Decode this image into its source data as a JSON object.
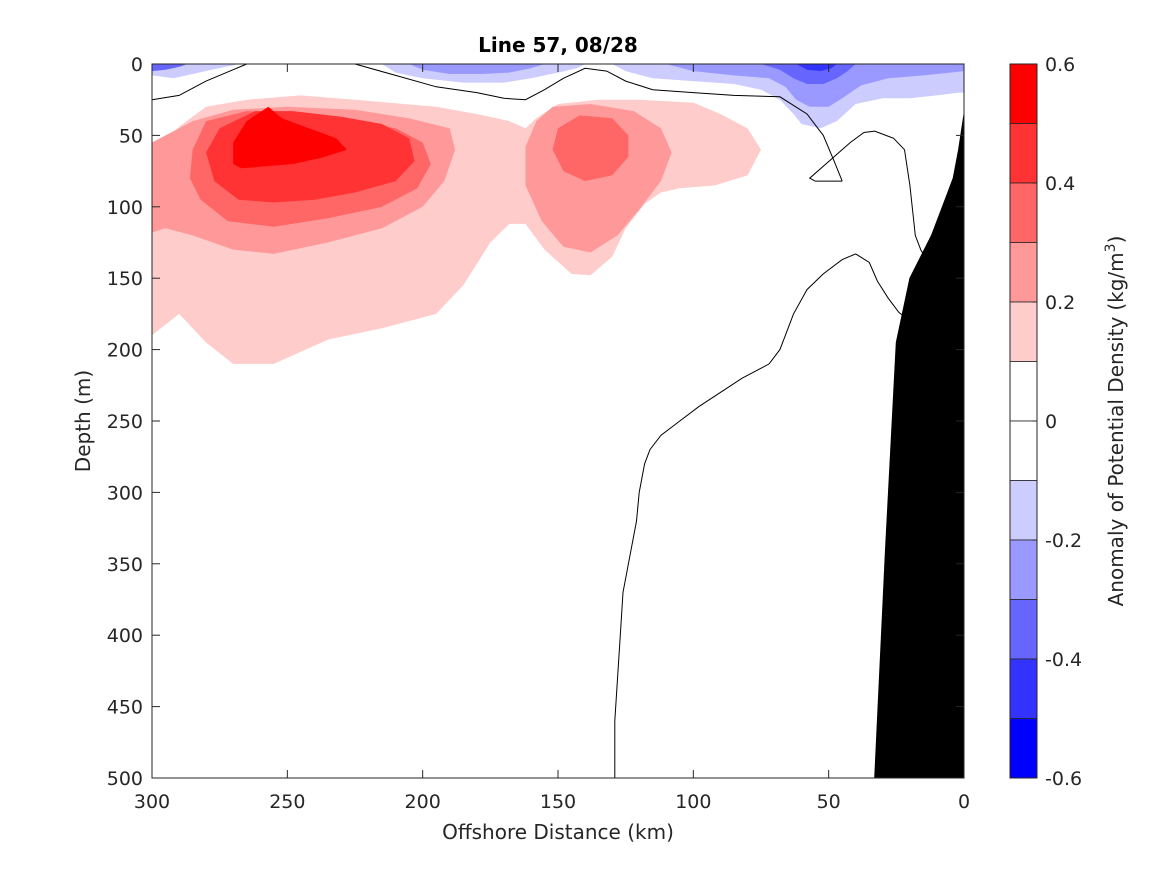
{
  "chart_data": {
    "type": "contour",
    "title": "Line 57, 08/28",
    "xlabel": "Offshore Distance (km)",
    "ylabel": "Depth (m)",
    "xlim": [
      300,
      0
    ],
    "ylim": [
      0,
      500
    ],
    "x_reversed": true,
    "y_reversed": true,
    "x_ticks": [
      "300",
      "250",
      "200",
      "150",
      "100",
      "50",
      "0"
    ],
    "y_ticks": [
      "0",
      "50",
      "100",
      "150",
      "200",
      "250",
      "300",
      "350",
      "400",
      "450",
      "500"
    ],
    "colorbar": {
      "label": "Anomaly of Potential Density",
      "unit_prefix": "(kg/m",
      "unit_exponent": "3",
      "unit_suffix": ")",
      "range": [
        -0.6,
        0.6
      ],
      "tick_labels": [
        "0.6",
        "0.4",
        "0.2",
        "0",
        "-0.2",
        "-0.4",
        "-0.6"
      ],
      "levels": [
        {
          "min": 0.5,
          "max": 0.6,
          "color": "#ff0000"
        },
        {
          "min": 0.4,
          "max": 0.5,
          "color": "#ff3333"
        },
        {
          "min": 0.3,
          "max": 0.4,
          "color": "#ff6666"
        },
        {
          "min": 0.2,
          "max": 0.3,
          "color": "#ff9999"
        },
        {
          "min": 0.1,
          "max": 0.2,
          "color": "#ffcccc"
        },
        {
          "min": 0.0,
          "max": 0.1,
          "color": "#ffffff"
        },
        {
          "min": -0.1,
          "max": 0.0,
          "color": "#ffffff"
        },
        {
          "min": -0.2,
          "max": -0.1,
          "color": "#ccccff"
        },
        {
          "min": -0.3,
          "max": -0.2,
          "color": "#9999ff"
        },
        {
          "min": -0.4,
          "max": -0.3,
          "color": "#6666ff"
        },
        {
          "min": -0.5,
          "max": -0.4,
          "color": "#3333ff"
        },
        {
          "min": -0.6,
          "max": -0.5,
          "color": "#0000ff"
        }
      ]
    },
    "regions": [
      {
        "name": "ring-0.1",
        "color": "#ffcccc",
        "points": [
          [
            300,
            62
          ],
          [
            295,
            55
          ],
          [
            290,
            44
          ],
          [
            280,
            30
          ],
          [
            265,
            25
          ],
          [
            245,
            22
          ],
          [
            225,
            25
          ],
          [
            195,
            30
          ],
          [
            180,
            35
          ],
          [
            168,
            40
          ],
          [
            162,
            45
          ],
          [
            158,
            38
          ],
          [
            150,
            28
          ],
          [
            135,
            25
          ],
          [
            120,
            25
          ],
          [
            100,
            27
          ],
          [
            90,
            35
          ],
          [
            80,
            45
          ],
          [
            75,
            60
          ],
          [
            80,
            78
          ],
          [
            92,
            85
          ],
          [
            105,
            87
          ],
          [
            112,
            90
          ],
          [
            118,
            98
          ],
          [
            125,
            115
          ],
          [
            130,
            135
          ],
          [
            138,
            148
          ],
          [
            145,
            147
          ],
          [
            155,
            130
          ],
          [
            162,
            112
          ],
          [
            168,
            112
          ],
          [
            175,
            125
          ],
          [
            180,
            140
          ],
          [
            185,
            155
          ],
          [
            195,
            175
          ],
          [
            215,
            185
          ],
          [
            235,
            193
          ],
          [
            255,
            210
          ],
          [
            270,
            210
          ],
          [
            280,
            195
          ],
          [
            290,
            175
          ],
          [
            300,
            190
          ]
        ]
      },
      {
        "name": "ring-0.2",
        "color": "#ff9999",
        "points": [
          [
            300,
            118
          ],
          [
            300,
            55
          ],
          [
            285,
            40
          ],
          [
            270,
            32
          ],
          [
            250,
            30
          ],
          [
            225,
            32
          ],
          [
            205,
            38
          ],
          [
            190,
            45
          ],
          [
            188,
            60
          ],
          [
            192,
            82
          ],
          [
            200,
            100
          ],
          [
            215,
            115
          ],
          [
            235,
            125
          ],
          [
            255,
            133
          ],
          [
            270,
            130
          ],
          [
            285,
            120
          ],
          [
            295,
            115
          ]
        ]
      },
      {
        "name": "ring-0.2-east",
        "color": "#ff9999",
        "points": [
          [
            152,
            30
          ],
          [
            138,
            28
          ],
          [
            122,
            33
          ],
          [
            112,
            45
          ],
          [
            108,
            62
          ],
          [
            112,
            82
          ],
          [
            120,
            102
          ],
          [
            128,
            120
          ],
          [
            138,
            132
          ],
          [
            148,
            128
          ],
          [
            156,
            110
          ],
          [
            162,
            85
          ],
          [
            162,
            58
          ],
          [
            158,
            40
          ]
        ]
      },
      {
        "name": "ring-0.3",
        "color": "#ff6666",
        "points": [
          [
            285,
            60
          ],
          [
            280,
            40
          ],
          [
            265,
            33
          ],
          [
            245,
            35
          ],
          [
            225,
            40
          ],
          [
            210,
            45
          ],
          [
            200,
            55
          ],
          [
            197,
            70
          ],
          [
            202,
            87
          ],
          [
            215,
            100
          ],
          [
            235,
            108
          ],
          [
            255,
            114
          ],
          [
            272,
            110
          ],
          [
            282,
            95
          ],
          [
            286,
            80
          ]
        ]
      },
      {
        "name": "ring-0.3-east",
        "color": "#ff6666",
        "points": [
          [
            150,
            45
          ],
          [
            142,
            36
          ],
          [
            130,
            38
          ],
          [
            124,
            50
          ],
          [
            124,
            65
          ],
          [
            130,
            78
          ],
          [
            140,
            82
          ],
          [
            148,
            75
          ],
          [
            152,
            60
          ]
        ]
      },
      {
        "name": "ring-0.4",
        "color": "#ff3333",
        "points": [
          [
            280,
            62
          ],
          [
            275,
            45
          ],
          [
            262,
            33
          ],
          [
            248,
            33
          ],
          [
            230,
            37
          ],
          [
            215,
            42
          ],
          [
            205,
            52
          ],
          [
            203,
            68
          ],
          [
            210,
            82
          ],
          [
            225,
            90
          ],
          [
            240,
            95
          ],
          [
            255,
            97
          ],
          [
            268,
            95
          ],
          [
            277,
            82
          ]
        ]
      },
      {
        "name": "ring-0.5",
        "color": "#ff0000",
        "points": [
          [
            270,
            70
          ],
          [
            270,
            55
          ],
          [
            265,
            40
          ],
          [
            257,
            30
          ],
          [
            252,
            38
          ],
          [
            242,
            45
          ],
          [
            232,
            52
          ],
          [
            228,
            60
          ],
          [
            238,
            66
          ],
          [
            248,
            70
          ],
          [
            260,
            72
          ],
          [
            267,
            73
          ]
        ]
      },
      {
        "name": "neg-surface-west",
        "color": "#ccccff",
        "points": [
          [
            300,
            0
          ],
          [
            300,
            8
          ],
          [
            292,
            10
          ],
          [
            285,
            7
          ],
          [
            278,
            4
          ],
          [
            270,
            1
          ],
          [
            268,
            0
          ]
        ]
      },
      {
        "name": "neg-surface-west-2",
        "color": "#6666ff",
        "points": [
          [
            300,
            0
          ],
          [
            300,
            5
          ],
          [
            295,
            4
          ],
          [
            290,
            2
          ],
          [
            287,
            0
          ]
        ]
      },
      {
        "name": "neg-surface-mid",
        "color": "#ccccff",
        "points": [
          [
            215,
            0
          ],
          [
            210,
            6
          ],
          [
            200,
            10
          ],
          [
            185,
            13
          ],
          [
            170,
            13
          ],
          [
            160,
            10
          ],
          [
            150,
            6
          ],
          [
            143,
            3
          ],
          [
            140,
            0
          ]
        ]
      },
      {
        "name": "neg-surface-mid-2",
        "color": "#9999ff",
        "points": [
          [
            205,
            0
          ],
          [
            200,
            4
          ],
          [
            190,
            7
          ],
          [
            178,
            7
          ],
          [
            168,
            6
          ],
          [
            160,
            3
          ],
          [
            155,
            0
          ]
        ]
      },
      {
        "name": "neg-surface-east",
        "color": "#ccccff",
        "points": [
          [
            130,
            0
          ],
          [
            125,
            5
          ],
          [
            115,
            10
          ],
          [
            100,
            12
          ],
          [
            85,
            14
          ],
          [
            75,
            18
          ],
          [
            68,
            25
          ],
          [
            63,
            35
          ],
          [
            60,
            42
          ],
          [
            53,
            45
          ],
          [
            47,
            40
          ],
          [
            40,
            28
          ],
          [
            30,
            24
          ],
          [
            20,
            24
          ],
          [
            10,
            22
          ],
          [
            2,
            20
          ],
          [
            0,
            20
          ],
          [
            0,
            0
          ]
        ]
      },
      {
        "name": "neg-surface-east-2",
        "color": "#9999ff",
        "points": [
          [
            110,
            0
          ],
          [
            100,
            5
          ],
          [
            85,
            8
          ],
          [
            72,
            10
          ],
          [
            66,
            16
          ],
          [
            62,
            25
          ],
          [
            57,
            30
          ],
          [
            50,
            30
          ],
          [
            45,
            24
          ],
          [
            38,
            15
          ],
          [
            28,
            10
          ],
          [
            15,
            8
          ],
          [
            5,
            6
          ],
          [
            0,
            5
          ],
          [
            0,
            0
          ]
        ]
      },
      {
        "name": "neg-surface-east-3",
        "color": "#6666ff",
        "points": [
          [
            75,
            0
          ],
          [
            68,
            4
          ],
          [
            63,
            10
          ],
          [
            58,
            14
          ],
          [
            52,
            14
          ],
          [
            47,
            10
          ],
          [
            43,
            5
          ],
          [
            40,
            0
          ]
        ]
      },
      {
        "name": "neg-surface-east-4",
        "color": "#3333ff",
        "points": [
          [
            62,
            0
          ],
          [
            58,
            4
          ],
          [
            53,
            5
          ],
          [
            49,
            3
          ],
          [
            47,
            0
          ]
        ]
      }
    ],
    "zero_contours": [
      [
        [
          300,
          25
        ],
        [
          290,
          22
        ],
        [
          280,
          12
        ],
        [
          270,
          4
        ],
        [
          265,
          0
        ]
      ],
      [
        [
          225,
          0
        ],
        [
          210,
          8
        ],
        [
          195,
          16
        ],
        [
          180,
          20
        ],
        [
          170,
          24
        ],
        [
          162,
          25
        ],
        [
          155,
          18
        ],
        [
          148,
          10
        ],
        [
          140,
          3
        ],
        [
          132,
          5
        ],
        [
          125,
          12
        ],
        [
          115,
          18
        ],
        [
          100,
          20
        ],
        [
          85,
          22
        ],
        [
          68,
          23
        ],
        [
          58,
          35
        ],
        [
          52,
          50
        ],
        [
          48,
          68
        ],
        [
          45,
          82
        ]
      ],
      [
        [
          45,
          82
        ],
        [
          55,
          82
        ]
      ],
      [
        [
          55,
          82
        ],
        [
          57,
          80
        ],
        [
          48,
          65
        ],
        [
          42,
          55
        ],
        [
          37,
          48
        ],
        [
          33,
          47
        ],
        [
          26,
          52
        ],
        [
          22,
          60
        ],
        [
          20,
          85
        ],
        [
          18,
          120
        ],
        [
          16,
          130
        ],
        [
          13,
          140
        ]
      ],
      [
        [
          129,
          500
        ],
        [
          129,
          460
        ],
        [
          127,
          400
        ],
        [
          126,
          370
        ],
        [
          124,
          350
        ],
        [
          121,
          320
        ],
        [
          120,
          300
        ],
        [
          119,
          290
        ],
        [
          118,
          280
        ],
        [
          116,
          270
        ],
        [
          112,
          260
        ],
        [
          105,
          250
        ],
        [
          98,
          240
        ],
        [
          90,
          230
        ],
        [
          82,
          220
        ],
        [
          72,
          210
        ],
        [
          68,
          200
        ],
        [
          66,
          190
        ],
        [
          63,
          175
        ],
        [
          58,
          158
        ],
        [
          52,
          147
        ],
        [
          45,
          137
        ],
        [
          40,
          133
        ],
        [
          35,
          139
        ],
        [
          32,
          152
        ],
        [
          28,
          164
        ],
        [
          24,
          174
        ],
        [
          20,
          180
        ],
        [
          14,
          185
        ],
        [
          12,
          185
        ]
      ]
    ],
    "bathymetry": [
      [
        33,
        500
      ],
      [
        29,
        340
      ],
      [
        25,
        195
      ],
      [
        20,
        150
      ],
      [
        12,
        120
      ],
      [
        7,
        95
      ],
      [
        4,
        80
      ],
      [
        2,
        60
      ],
      [
        0,
        35
      ],
      [
        0,
        500
      ]
    ]
  }
}
